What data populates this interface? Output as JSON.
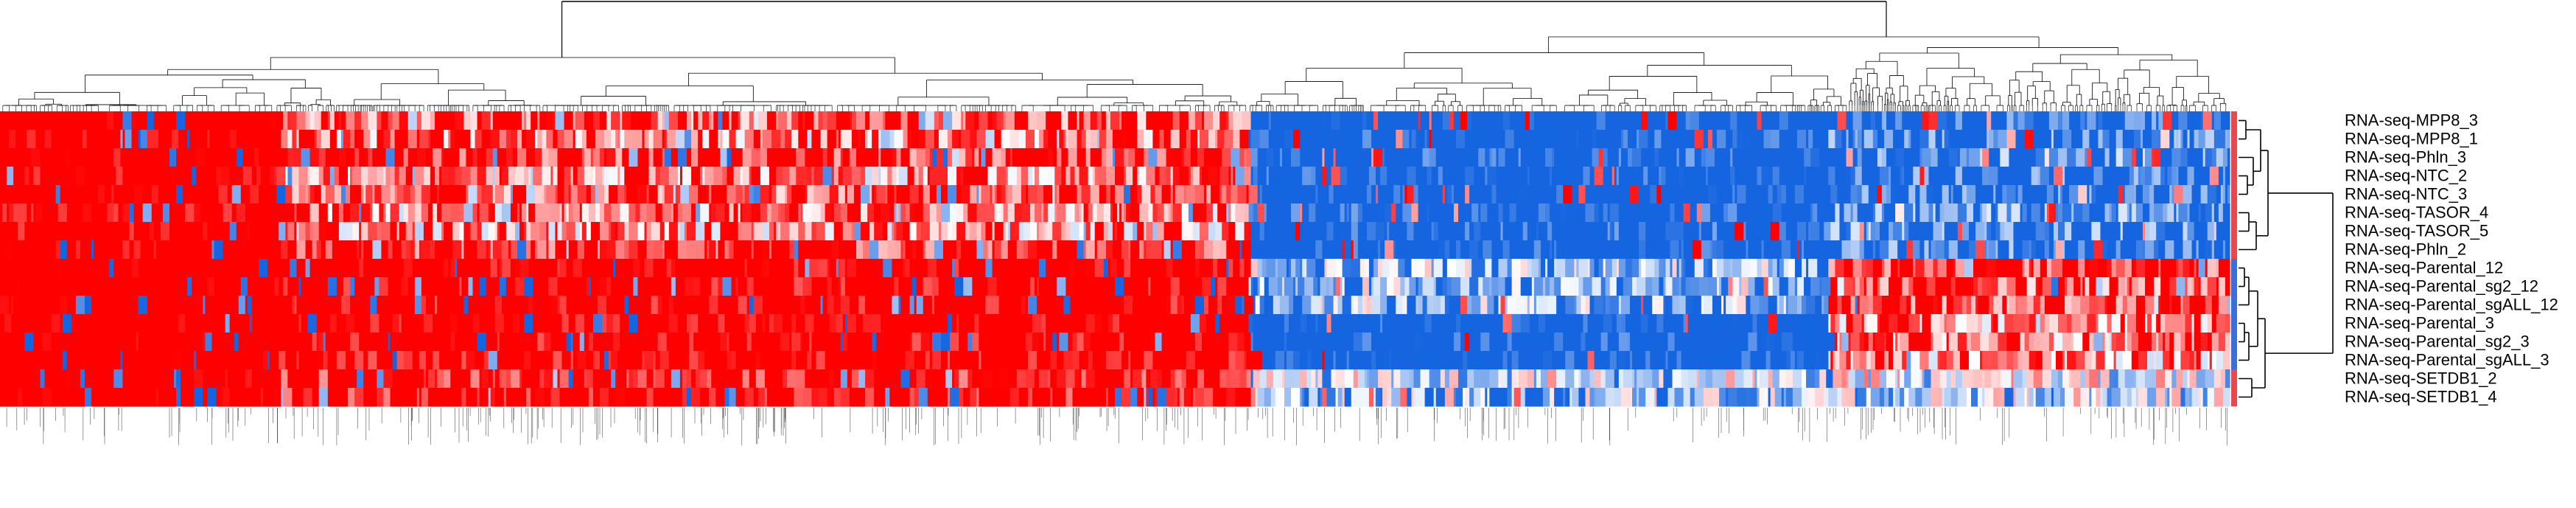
{
  "chart_data": {
    "type": "heatmap",
    "title": "",
    "xlabel": "",
    "ylabel": "",
    "color_scale": {
      "low": "#1565e0",
      "mid": "#ffffff",
      "high": "#ff0000"
    },
    "row_dendrogram_side": "right",
    "column_dendrogram_side": "top",
    "rows": [
      "RNA-seq-MPP8_3",
      "RNA-seq-MPP8_1",
      "RNA-seq-Phln_3",
      "RNA-seq-NTC_2",
      "RNA-seq-NTC_3",
      "RNA-seq-TASOR_4",
      "RNA-seq-TASOR_5",
      "RNA-seq-Phln_2",
      "RNA-seq-Parental_12",
      "RNA-seq-Parental_sg2_12",
      "RNA-seq-Parental_sgALL_12",
      "RNA-seq-Parental_3",
      "RNA-seq-Parental_sg2_3",
      "RNA-seq-Parental_sgALL_3",
      "RNA-seq-SETDB1_2",
      "RNA-seq-SETDB1_4"
    ],
    "row_groups": [
      {
        "color": "#e8474b",
        "rows": [
          0,
          1,
          2,
          3,
          4,
          5,
          6,
          7
        ]
      },
      {
        "color": "#3b6fd8",
        "rows": [
          8,
          9,
          10,
          11,
          12,
          13
        ]
      },
      {
        "color": "#e8474b",
        "rows": [
          14,
          15
        ]
      }
    ],
    "column_blocks": [
      {
        "name": "block-1",
        "level": [
          0.95,
          0.95,
          0.95,
          0.9,
          0.95,
          0.9,
          0.9,
          0.95,
          1,
          1,
          1,
          1,
          1,
          1,
          1,
          1
        ]
      },
      {
        "name": "block-2",
        "level": [
          0.5,
          0.4,
          0.6,
          0.4,
          0.5,
          0.4,
          0.3,
          0.6,
          0.9,
          0.85,
          0.85,
          0.9,
          0.85,
          0.85,
          0.7,
          0.75
        ]
      },
      {
        "name": "block-3",
        "level": [
          -0.9,
          -0.85,
          -0.8,
          -0.85,
          -0.9,
          -0.8,
          -0.8,
          -0.85,
          -0.3,
          -0.4,
          -0.35,
          -0.9,
          -0.85,
          -0.9,
          -0.2,
          -0.3
        ]
      },
      {
        "name": "block-4",
        "level": [
          -0.7,
          -0.6,
          -0.55,
          -0.6,
          -0.65,
          -0.5,
          -0.55,
          -0.6,
          0.6,
          0.5,
          0.55,
          0.35,
          0.4,
          0.3,
          -0.1,
          -0.2
        ]
      }
    ]
  }
}
